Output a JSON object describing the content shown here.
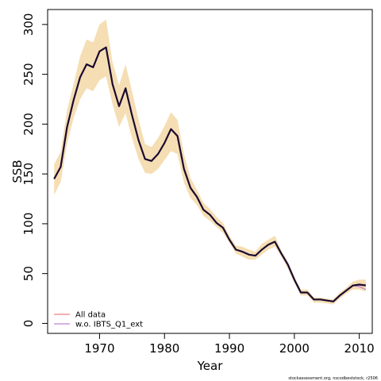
{
  "chart_data": {
    "type": "line",
    "title": "",
    "xlabel": "Year",
    "ylabel": "SSB",
    "xlim": [
      1962,
      2012
    ],
    "ylim": [
      -10,
      315
    ],
    "x_ticks": [
      1970,
      1980,
      1990,
      2000,
      2010
    ],
    "y_ticks": [
      0,
      50,
      100,
      150,
      200,
      250,
      300
    ],
    "grid": false,
    "legend_position": "bottom-left",
    "x": [
      1963,
      1964,
      1965,
      1966,
      1967,
      1968,
      1969,
      1970,
      1971,
      1972,
      1973,
      1974,
      1975,
      1976,
      1977,
      1978,
      1979,
      1980,
      1981,
      1982,
      1983,
      1984,
      1985,
      1986,
      1987,
      1988,
      1989,
      1990,
      1991,
      1992,
      1993,
      1994,
      1995,
      1996,
      1997,
      1998,
      1999,
      2000,
      2001,
      2002,
      2003,
      2004,
      2005,
      2006,
      2007,
      2008,
      2009,
      2010,
      2011
    ],
    "band": {
      "lower": [
        129,
        142,
        180,
        206,
        225,
        236,
        233,
        244,
        248,
        220,
        197,
        211,
        186,
        165,
        151,
        150,
        155,
        164,
        173,
        170,
        141,
        126,
        119,
        108,
        103,
        97,
        91,
        81,
        70,
        67,
        64,
        64,
        69,
        74,
        77,
        67,
        55,
        41,
        28,
        28,
        21,
        21,
        20,
        19,
        25,
        30,
        34,
        34,
        32
      ],
      "upper": [
        160,
        172,
        214,
        240,
        268,
        285,
        282,
        300,
        305,
        262,
        239,
        260,
        233,
        205,
        180,
        177,
        186,
        198,
        212,
        204,
        170,
        146,
        134,
        121,
        115,
        107,
        101,
        88,
        78,
        77,
        74,
        72,
        80,
        84,
        88,
        73,
        62,
        47,
        34,
        34,
        26,
        26,
        25,
        24,
        31,
        36,
        42,
        44,
        44
      ],
      "color": "#f5deb3"
    },
    "series": [
      {
        "name": "All data",
        "color": "#f08080",
        "values": [
          145,
          157,
          197,
          224,
          247,
          260,
          257,
          273,
          277,
          240,
          218,
          236,
          209,
          184,
          165,
          163,
          170,
          181,
          195,
          188,
          155,
          136,
          127,
          114,
          109,
          101,
          96,
          84,
          74,
          72,
          69,
          68,
          74,
          79,
          82,
          70,
          59,
          44,
          31,
          31,
          24,
          24,
          23,
          22,
          28,
          33,
          38,
          39,
          39
        ]
      },
      {
        "name": "w.o. IBTS_Q1_ext",
        "color": "#c080d0",
        "values": [
          145,
          157,
          197,
          224,
          247,
          260,
          257,
          273,
          277,
          240,
          218,
          236,
          209,
          184,
          165,
          163,
          170,
          181,
          195,
          188,
          155,
          136,
          127,
          114,
          109,
          101,
          96,
          84,
          74,
          72,
          69,
          68,
          74,
          79,
          82,
          70,
          59,
          44,
          31,
          31,
          24,
          24,
          23,
          22,
          28,
          33,
          38,
          37,
          34
        ]
      },
      {
        "name": "",
        "color": "#1a0a30",
        "values": [
          145,
          157,
          197,
          224,
          247,
          260,
          257,
          273,
          277,
          240,
          218,
          236,
          209,
          184,
          165,
          163,
          170,
          181,
          195,
          188,
          155,
          136,
          127,
          114,
          109,
          101,
          96,
          84,
          74,
          72,
          69,
          68,
          74,
          79,
          82,
          70,
          59,
          44,
          31,
          31,
          24,
          24,
          23,
          22,
          28,
          33,
          38,
          39,
          38
        ]
      }
    ]
  },
  "footnote": "stockassessment.org, nscodbeststock, r2506"
}
